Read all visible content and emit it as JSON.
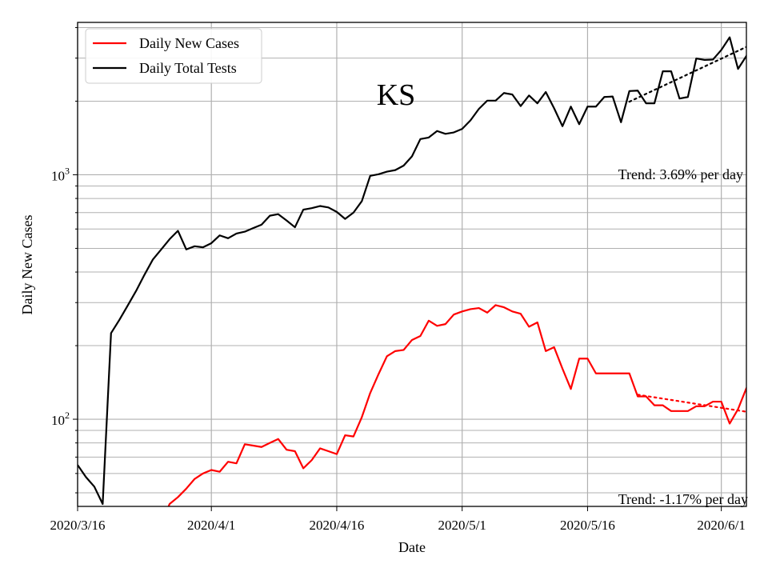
{
  "chart_data": {
    "type": "line",
    "title": "KS",
    "xlabel": "Date",
    "ylabel": "Daily New Cases",
    "yscale": "log",
    "ylim": [
      44,
      4200
    ],
    "xlim": [
      "2020-03-16",
      "2020-06-04"
    ],
    "x_ticks": [
      {
        "date": "2020-03-16",
        "label": "2020/3/16"
      },
      {
        "date": "2020-04-01",
        "label": "2020/4/1"
      },
      {
        "date": "2020-04-16",
        "label": "2020/4/16"
      },
      {
        "date": "2020-05-01",
        "label": "2020/5/1"
      },
      {
        "date": "2020-05-16",
        "label": "2020/5/16"
      },
      {
        "date": "2020-06-01",
        "label": "2020/6/1"
      }
    ],
    "y_major_ticks": [
      {
        "value": 100,
        "base": "10",
        "exp": "2"
      },
      {
        "value": 1000,
        "base": "10",
        "exp": "3"
      }
    ],
    "grid": true,
    "legend_position": "top-left",
    "series": [
      {
        "name": "Daily New Cases",
        "color": "#ff0000",
        "points": [
          [
            "2020-03-26",
            37
          ],
          [
            "2020-03-27",
            45
          ],
          [
            "2020-03-28",
            48
          ],
          [
            "2020-03-29",
            52
          ],
          [
            "2020-03-30",
            57
          ],
          [
            "2020-03-31",
            60
          ],
          [
            "2020-04-01",
            62
          ],
          [
            "2020-04-02",
            61
          ],
          [
            "2020-04-03",
            67
          ],
          [
            "2020-04-04",
            66
          ],
          [
            "2020-04-05",
            79
          ],
          [
            "2020-04-06",
            78
          ],
          [
            "2020-04-07",
            77
          ],
          [
            "2020-04-08",
            80
          ],
          [
            "2020-04-09",
            83
          ],
          [
            "2020-04-10",
            75
          ],
          [
            "2020-04-11",
            74
          ],
          [
            "2020-04-12",
            63
          ],
          [
            "2020-04-13",
            68
          ],
          [
            "2020-04-14",
            76
          ],
          [
            "2020-04-15",
            74
          ],
          [
            "2020-04-16",
            72
          ],
          [
            "2020-04-17",
            86
          ],
          [
            "2020-04-18",
            85
          ],
          [
            "2020-04-19",
            102
          ],
          [
            "2020-04-20",
            128
          ],
          [
            "2020-04-21",
            153
          ],
          [
            "2020-04-22",
            181
          ],
          [
            "2020-04-23",
            190
          ],
          [
            "2020-04-24",
            192
          ],
          [
            "2020-04-25",
            211
          ],
          [
            "2020-04-26",
            219
          ],
          [
            "2020-04-27",
            253
          ],
          [
            "2020-04-28",
            241
          ],
          [
            "2020-04-29",
            245
          ],
          [
            "2020-04-30",
            268
          ],
          [
            "2020-05-01",
            276
          ],
          [
            "2020-05-02",
            282
          ],
          [
            "2020-05-03",
            285
          ],
          [
            "2020-05-04",
            273
          ],
          [
            "2020-05-05",
            293
          ],
          [
            "2020-05-06",
            287
          ],
          [
            "2020-05-07",
            276
          ],
          [
            "2020-05-08",
            270
          ],
          [
            "2020-05-09",
            239
          ],
          [
            "2020-05-10",
            249
          ],
          [
            "2020-05-11",
            190
          ],
          [
            "2020-05-12",
            197
          ],
          [
            "2020-05-13",
            161
          ],
          [
            "2020-05-14",
            133
          ],
          [
            "2020-05-15",
            177
          ],
          [
            "2020-05-16",
            177
          ],
          [
            "2020-05-17",
            154
          ],
          [
            "2020-05-18",
            154
          ],
          [
            "2020-05-19",
            154
          ],
          [
            "2020-05-20",
            154
          ],
          [
            "2020-05-21",
            154
          ],
          [
            "2020-05-22",
            124
          ],
          [
            "2020-05-23",
            124
          ],
          [
            "2020-05-24",
            114
          ],
          [
            "2020-05-25",
            114
          ],
          [
            "2020-05-26",
            108
          ],
          [
            "2020-05-27",
            108
          ],
          [
            "2020-05-28",
            108
          ],
          [
            "2020-05-29",
            113
          ],
          [
            "2020-05-30",
            113
          ],
          [
            "2020-05-31",
            118
          ],
          [
            "2020-06-01",
            118
          ],
          [
            "2020-06-02",
            96
          ],
          [
            "2020-06-03",
            110
          ],
          [
            "2020-06-04",
            134
          ],
          [
            "2020-06-05",
            96
          ]
        ]
      },
      {
        "name": "Daily Total Tests",
        "color": "#000000",
        "points": [
          [
            "2020-03-16",
            65
          ],
          [
            "2020-03-17",
            58
          ],
          [
            "2020-03-18",
            53
          ],
          [
            "2020-03-19",
            45
          ],
          [
            "2020-03-20",
            225
          ],
          [
            "2020-03-21",
            255
          ],
          [
            "2020-03-22",
            292
          ],
          [
            "2020-03-23",
            335
          ],
          [
            "2020-03-24",
            390
          ],
          [
            "2020-03-25",
            450
          ],
          [
            "2020-03-26",
            495
          ],
          [
            "2020-03-27",
            545
          ],
          [
            "2020-03-28",
            590
          ],
          [
            "2020-03-29",
            495
          ],
          [
            "2020-03-30",
            510
          ],
          [
            "2020-03-31",
            505
          ],
          [
            "2020-04-01",
            525
          ],
          [
            "2020-04-02",
            565
          ],
          [
            "2020-04-03",
            550
          ],
          [
            "2020-04-04",
            575
          ],
          [
            "2020-04-05",
            585
          ],
          [
            "2020-04-06",
            605
          ],
          [
            "2020-04-07",
            625
          ],
          [
            "2020-04-08",
            680
          ],
          [
            "2020-04-09",
            690
          ],
          [
            "2020-04-10",
            650
          ],
          [
            "2020-04-11",
            610
          ],
          [
            "2020-04-12",
            720
          ],
          [
            "2020-04-13",
            730
          ],
          [
            "2020-04-14",
            745
          ],
          [
            "2020-04-15",
            735
          ],
          [
            "2020-04-16",
            705
          ],
          [
            "2020-04-17",
            660
          ],
          [
            "2020-04-18",
            700
          ],
          [
            "2020-04-19",
            780
          ],
          [
            "2020-04-20",
            990
          ],
          [
            "2020-04-21",
            1005
          ],
          [
            "2020-04-22",
            1030
          ],
          [
            "2020-04-23",
            1045
          ],
          [
            "2020-04-24",
            1090
          ],
          [
            "2020-04-25",
            1190
          ],
          [
            "2020-04-26",
            1400
          ],
          [
            "2020-04-27",
            1420
          ],
          [
            "2020-04-28",
            1510
          ],
          [
            "2020-04-29",
            1470
          ],
          [
            "2020-04-30",
            1490
          ],
          [
            "2020-05-01",
            1540
          ],
          [
            "2020-05-02",
            1670
          ],
          [
            "2020-05-03",
            1860
          ],
          [
            "2020-05-04",
            2010
          ],
          [
            "2020-05-05",
            2010
          ],
          [
            "2020-05-06",
            2160
          ],
          [
            "2020-05-07",
            2130
          ],
          [
            "2020-05-08",
            1910
          ],
          [
            "2020-05-09",
            2110
          ],
          [
            "2020-05-10",
            1960
          ],
          [
            "2020-05-11",
            2180
          ],
          [
            "2020-05-12",
            1870
          ],
          [
            "2020-05-13",
            1580
          ],
          [
            "2020-05-14",
            1900
          ],
          [
            "2020-05-15",
            1610
          ],
          [
            "2020-05-16",
            1900
          ],
          [
            "2020-05-17",
            1900
          ],
          [
            "2020-05-18",
            2080
          ],
          [
            "2020-05-19",
            2090
          ],
          [
            "2020-05-20",
            1640
          ],
          [
            "2020-05-21",
            2200
          ],
          [
            "2020-05-22",
            2210
          ],
          [
            "2020-05-23",
            1960
          ],
          [
            "2020-05-24",
            1960
          ],
          [
            "2020-05-25",
            2650
          ],
          [
            "2020-05-26",
            2650
          ],
          [
            "2020-05-27",
            2050
          ],
          [
            "2020-05-28",
            2080
          ],
          [
            "2020-05-29",
            2990
          ],
          [
            "2020-05-30",
            2950
          ],
          [
            "2020-05-31",
            2960
          ],
          [
            "2020-06-01",
            3240
          ],
          [
            "2020-06-02",
            3650
          ],
          [
            "2020-06-03",
            2710
          ],
          [
            "2020-06-04",
            3060
          ],
          [
            "2020-06-05",
            3750
          ]
        ]
      }
    ],
    "trend_lines": [
      {
        "color": "#000000",
        "start": [
          "2020-05-21",
          1990
        ],
        "end": [
          "2020-06-05",
          3460
        ]
      },
      {
        "color": "#ff0000",
        "start": [
          "2020-05-22",
          126
        ],
        "end": [
          "2020-06-05",
          106
        ]
      }
    ],
    "annotations": {
      "title": "KS",
      "tests_trend": "Trend: 3.69% per day",
      "cases_trend": "Trend: -1.17% per day"
    }
  }
}
